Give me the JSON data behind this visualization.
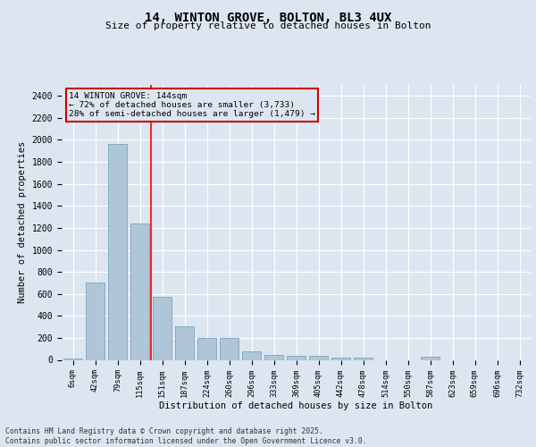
{
  "title_line1": "14, WINTON GROVE, BOLTON, BL3 4UX",
  "title_line2": "Size of property relative to detached houses in Bolton",
  "xlabel": "Distribution of detached houses by size in Bolton",
  "ylabel": "Number of detached properties",
  "categories": [
    "6sqm",
    "42sqm",
    "79sqm",
    "115sqm",
    "151sqm",
    "187sqm",
    "224sqm",
    "260sqm",
    "296sqm",
    "333sqm",
    "369sqm",
    "405sqm",
    "442sqm",
    "478sqm",
    "514sqm",
    "550sqm",
    "587sqm",
    "623sqm",
    "659sqm",
    "696sqm",
    "732sqm"
  ],
  "values": [
    15,
    700,
    1960,
    1240,
    575,
    305,
    200,
    200,
    80,
    45,
    35,
    35,
    20,
    20,
    0,
    0,
    25,
    0,
    0,
    0,
    0
  ],
  "bar_color": "#aec6d8",
  "bar_edge_color": "#6a9bb8",
  "background_color": "#dde6f0",
  "grid_color": "#ffffff",
  "redline_index": 4,
  "annotation_text": "14 WINTON GROVE: 144sqm\n← 72% of detached houses are smaller (3,733)\n28% of semi-detached houses are larger (1,479) →",
  "annotation_box_color": "#cc0000",
  "ylim": [
    0,
    2500
  ],
  "yticks": [
    0,
    200,
    400,
    600,
    800,
    1000,
    1200,
    1400,
    1600,
    1800,
    2000,
    2200,
    2400
  ],
  "footer_text": "Contains HM Land Registry data © Crown copyright and database right 2025.\nContains public sector information licensed under the Open Government Licence v3.0.",
  "figsize": [
    6.0,
    5.0
  ],
  "dpi": 100
}
